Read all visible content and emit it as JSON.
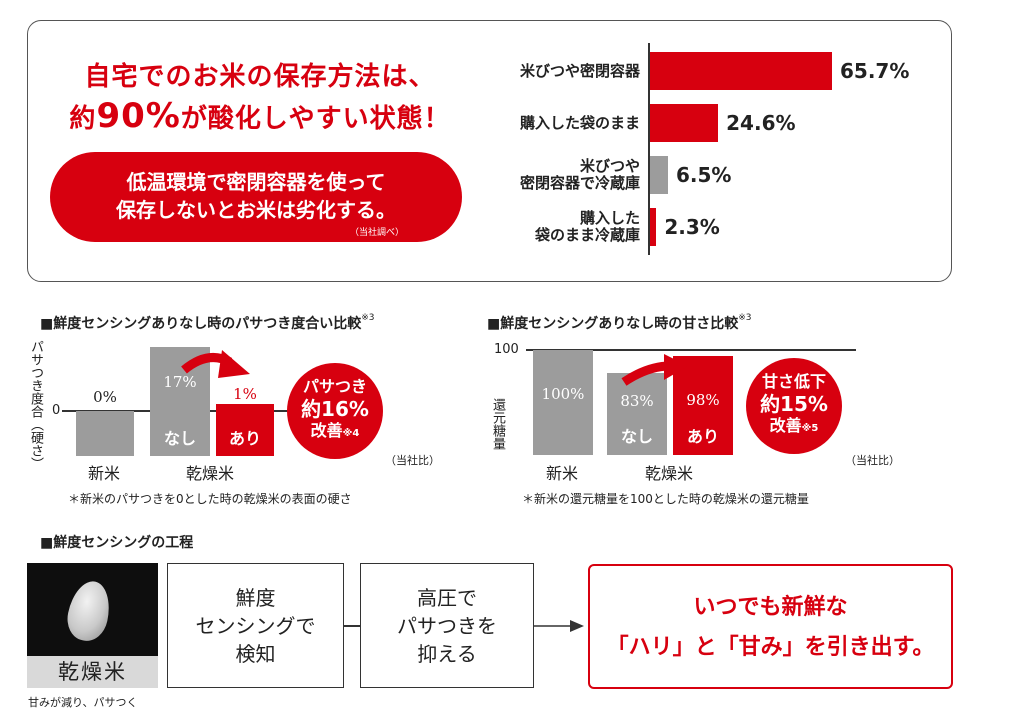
{
  "header": {
    "headline_1": "自宅でのお米の保存方法は、",
    "headline_2_pre": "約",
    "headline_2_num": "90%",
    "headline_2_post": "が酸化しやすい状態！",
    "pill_line_1": "低温環境で密閉容器を使って",
    "pill_line_2": "保存しないとお米は劣化する。",
    "pill_note": "（当社調べ）"
  },
  "storage_chart": {
    "labels": [
      [
        "米びつや密閉容器"
      ],
      [
        "購入した袋のまま"
      ],
      [
        "米びつや",
        "密閉容器で冷蔵庫"
      ],
      [
        "購入した",
        "袋のまま冷蔵庫"
      ]
    ],
    "value_labels": [
      "65.7%",
      "24.6%",
      "6.5%",
      "2.3%"
    ]
  },
  "chart_left": {
    "title": "■鮮度センシングありなし時のパサつき度合い比較",
    "title_sup": "※3",
    "ylabel": "パサつき度合（硬さ）",
    "zero_tick": "0",
    "val_shinmai": "0%",
    "val_nashi": "17%",
    "val_ari": "1%",
    "label_nashi": "なし",
    "label_ari": "あり",
    "cat_shinmai": "新米",
    "cat_kansou": "乾燥米",
    "badge_1": "パサつき",
    "badge_2": "約16%",
    "badge_3": "改善",
    "badge_3_sup": "※4",
    "source": "（当社比）",
    "footnote": "＊新米のパサつきを0とした時の乾燥米の表面の硬さ"
  },
  "chart_right": {
    "title": "■鮮度センシングありなし時の甘さ比較",
    "title_sup": "※3",
    "ylabel": "還元糖量",
    "tick_100": "100",
    "val_shinmai": "100%",
    "val_nashi": "83%",
    "val_ari": "98%",
    "label_nashi": "なし",
    "label_ari": "あり",
    "cat_shinmai": "新米",
    "cat_kansou": "乾燥米",
    "badge_1": "甘さ低下",
    "badge_2": "約15%",
    "badge_3": "改善",
    "badge_3_sup": "※5",
    "source": "（当社比）",
    "footnote": "＊新米の還元糖量を100とした時の乾燥米の還元糖量"
  },
  "process": {
    "title": "■鮮度センシングの工程",
    "rice_label": "乾燥米",
    "rice_caption": "甘みが減り、パサつく",
    "step1": [
      "鮮度",
      "センシングで",
      "検知"
    ],
    "step2": [
      "高圧で",
      "パサつきを",
      "抑える"
    ],
    "result_1": "いつでも新鮮な",
    "result_2": "「ハリ」と「甘み」を引き出す。"
  },
  "colors": {
    "red": "#d7000f",
    "gray": "#9c9c9c",
    "dark": "#222222"
  },
  "chart_data": [
    {
      "type": "bar",
      "orientation": "horizontal",
      "categories": [
        "米びつや密閉容器",
        "購入した袋のまま",
        "米びつや密閉容器で冷蔵庫",
        "購入した袋のまま冷蔵庫"
      ],
      "values": [
        65.7,
        24.6,
        6.5,
        2.3
      ],
      "unit": "%",
      "colors": [
        "#d7000f",
        "#d7000f",
        "#9c9c9c",
        "#d7000f"
      ]
    },
    {
      "type": "bar",
      "title": "鮮度センシングありなし時のパサつき度合い比較",
      "ylabel": "パサつき度合（硬さ）",
      "categories": [
        "新米",
        "乾燥米 なし",
        "乾燥米 あり"
      ],
      "values": [
        0,
        17,
        1
      ],
      "unit": "%",
      "colors": [
        "#9c9c9c",
        "#9c9c9c",
        "#d7000f"
      ]
    },
    {
      "type": "bar",
      "title": "鮮度センシングありなし時の甘さ比較",
      "ylabel": "還元糖量",
      "categories": [
        "新米",
        "乾燥米 なし",
        "乾燥米 あり"
      ],
      "values": [
        100,
        83,
        98
      ],
      "unit": "%",
      "colors": [
        "#9c9c9c",
        "#9c9c9c",
        "#d7000f"
      ]
    }
  ]
}
